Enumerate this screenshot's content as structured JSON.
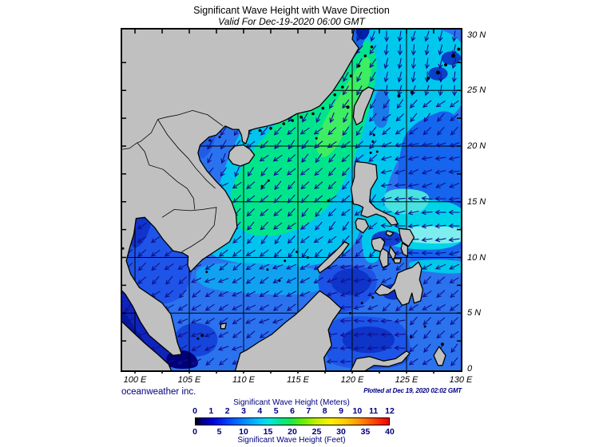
{
  "title": "Significant Wave Height with Wave Direction",
  "subtitle": "Valid For Dec-19-2020 06:00 GMT",
  "credit": "oceanweather inc.",
  "plotted": "Plotted at Dec 19, 2020 02:02 GMT",
  "axes": {
    "lat": [
      {
        "label": "30 N",
        "value": 30
      },
      {
        "label": "25 N",
        "value": 25
      },
      {
        "label": "20 N",
        "value": 20
      },
      {
        "label": "15 N",
        "value": 15
      },
      {
        "label": "10 N",
        "value": 10
      },
      {
        "label": "5 N",
        "value": 5
      },
      {
        "label": "0",
        "value": 0
      }
    ],
    "lon": [
      {
        "label": "100 E",
        "value": 100
      },
      {
        "label": "105 E",
        "value": 105
      },
      {
        "label": "110 E",
        "value": 110
      },
      {
        "label": "115 E",
        "value": 115
      },
      {
        "label": "120 E",
        "value": 120
      },
      {
        "label": "125 E",
        "value": 125
      },
      {
        "label": "130 E",
        "value": 130
      }
    ]
  },
  "legend": {
    "meters_title": "Significant Wave Height (Meters)",
    "feet_title": "Significant Wave Height (Feet)",
    "meters_ticks": [
      0,
      1,
      2,
      3,
      4,
      5,
      6,
      7,
      8,
      9,
      10,
      11,
      12
    ],
    "feet_ticks": [
      0,
      5,
      10,
      15,
      20,
      25,
      30,
      35,
      40
    ],
    "gradient": [
      [
        "0%",
        "#000000"
      ],
      [
        "3%",
        "#000080"
      ],
      [
        "9%",
        "#0000e0"
      ],
      [
        "17%",
        "#0048ff"
      ],
      [
        "25%",
        "#0088ff"
      ],
      [
        "33%",
        "#00c8ff"
      ],
      [
        "38%",
        "#00e8e0"
      ],
      [
        "44%",
        "#00e890"
      ],
      [
        "50%",
        "#20e840"
      ],
      [
        "56%",
        "#70ee00"
      ],
      [
        "63%",
        "#c8f000"
      ],
      [
        "70%",
        "#fff000"
      ],
      [
        "78%",
        "#ffc800"
      ],
      [
        "85%",
        "#ff9000"
      ],
      [
        "92%",
        "#ff4800"
      ],
      [
        "100%",
        "#ee0000"
      ]
    ]
  },
  "map": {
    "colors": {
      "land": "#c0c0c0",
      "coast": "#000000",
      "sea_base": "#2b72ee",
      "grid": "#000000",
      "arrow": "#10108e",
      "border": "#000000"
    },
    "wave_zones": [
      {
        "name": "scs-cyan",
        "color": "#00c4ee",
        "pts": [
          [
            106.5,
            11
          ],
          [
            107.2,
            14.5
          ],
          [
            108.2,
            18
          ],
          [
            109.3,
            20.5
          ],
          [
            110.3,
            22.3
          ],
          [
            112,
            23.8
          ],
          [
            114,
            25.5
          ],
          [
            116,
            27.2
          ],
          [
            118,
            28.8
          ],
          [
            119.3,
            30.2
          ],
          [
            119.8,
            30.7
          ],
          [
            123.5,
            30.7
          ],
          [
            123.2,
            27
          ],
          [
            122.5,
            23
          ],
          [
            121.8,
            19
          ],
          [
            121.3,
            15
          ],
          [
            120.7,
            12
          ],
          [
            119.5,
            10.3
          ],
          [
            117,
            9.3
          ],
          [
            113,
            9.0
          ],
          [
            109.5,
            9.5
          ],
          [
            107.3,
            10
          ]
        ]
      },
      {
        "name": "pacific-cyan",
        "color": "#00c8ec",
        "pts": [
          [
            121,
            30.7
          ],
          [
            130.7,
            30.7
          ],
          [
            130.7,
            23.5
          ],
          [
            127,
            21.5
          ],
          [
            124.5,
            19.5
          ],
          [
            123,
            16
          ],
          [
            122.5,
            12
          ],
          [
            122.6,
            9.5
          ],
          [
            121,
            9.5
          ],
          [
            120.8,
            13
          ],
          [
            121.5,
            17
          ],
          [
            122.3,
            22
          ],
          [
            122.8,
            26
          ],
          [
            122.5,
            29
          ]
        ]
      },
      {
        "name": "pacific-blue",
        "color": "#1565ee",
        "pts": [
          [
            125,
            22
          ],
          [
            130.7,
            24
          ],
          [
            130.7,
            9
          ],
          [
            124.8,
            9
          ],
          [
            124.2,
            15
          ],
          [
            124.2,
            18.5
          ]
        ]
      },
      {
        "name": "pacific-band-cyan",
        "color": "#00d4e8",
        "pts": [
          [
            122.6,
            15.2
          ],
          [
            130.7,
            15.2
          ],
          [
            130.7,
            10.6
          ],
          [
            122.8,
            10.8
          ],
          [
            122.4,
            13
          ]
        ]
      },
      {
        "name": "pacific-band-pale",
        "color": "#7dedee",
        "pts": [
          [
            124,
            12.8
          ],
          [
            130.7,
            12.8
          ],
          [
            130.7,
            11.2
          ],
          [
            124.5,
            11.3
          ]
        ]
      },
      {
        "name": "pacific-light",
        "color": "#49e2e0",
        "pts": [
          [
            122.8,
            16.3
          ],
          [
            127.5,
            16
          ],
          [
            126.5,
            13.8
          ],
          [
            123,
            14
          ]
        ]
      },
      {
        "name": "green-core",
        "color": "#00e58c",
        "pts": [
          [
            109.5,
            12.5
          ],
          [
            108.5,
            15.5
          ],
          [
            110,
            18.5
          ],
          [
            112,
            21
          ],
          [
            114.5,
            23.5
          ],
          [
            117,
            25.8
          ],
          [
            119,
            27.8
          ],
          [
            120.5,
            29.3
          ],
          [
            121.7,
            29.6
          ],
          [
            122.4,
            27.5
          ],
          [
            121.9,
            24.5
          ],
          [
            120.9,
            21
          ],
          [
            119.7,
            17.5
          ],
          [
            117.5,
            14
          ],
          [
            114.5,
            12.2
          ],
          [
            111.5,
            11.8
          ]
        ]
      },
      {
        "name": "green-bright",
        "color": "#3ded62",
        "pts": [
          [
            116.5,
            20
          ],
          [
            117.5,
            22.5
          ],
          [
            119,
            24.8
          ],
          [
            120.3,
            26.8
          ],
          [
            121.3,
            28.3
          ],
          [
            121.9,
            27.2
          ],
          [
            121.3,
            24.8
          ],
          [
            119.8,
            22
          ],
          [
            118.3,
            19.5
          ],
          [
            117.2,
            18.8
          ]
        ]
      },
      {
        "name": "south-band",
        "color": "#10a2f0",
        "pts": [
          [
            105.8,
            9.8
          ],
          [
            119,
            9.0
          ],
          [
            117,
            6.5
          ],
          [
            109,
            6.8
          ],
          [
            105.5,
            7.5
          ]
        ]
      },
      {
        "name": "tonkin-blue",
        "color": "#1e5ce8",
        "pts": [
          [
            105.6,
            21.6
          ],
          [
            107.6,
            21.6
          ],
          [
            107.2,
            19.8
          ],
          [
            105.9,
            18.4
          ]
        ]
      },
      {
        "name": "tonkin-dark",
        "color": "#0c2cc0",
        "pts": [
          [
            105.7,
            21.4
          ],
          [
            106.8,
            21.4
          ],
          [
            106.1,
            20.2
          ]
        ]
      },
      {
        "name": "china-coast-blue",
        "color": "#1565e8",
        "pts": [
          [
            119.8,
            30.7
          ],
          [
            121.5,
            30.7
          ],
          [
            121.0,
            29.0
          ],
          [
            119.9,
            27.6
          ],
          [
            119.2,
            26.4
          ],
          [
            118.6,
            25.6
          ],
          [
            118.0,
            25.2
          ],
          [
            118.6,
            26.8
          ],
          [
            119.3,
            28.6
          ]
        ]
      },
      {
        "name": "hangzhou-dark",
        "color": "#0020a8",
        "pts": [
          [
            120.3,
            30.7
          ],
          [
            121.8,
            30.7
          ],
          [
            121.2,
            29.4
          ],
          [
            120.4,
            29.8
          ]
        ]
      },
      {
        "name": "taiwan-east-blue",
        "color": "#1a7ae8",
        "pts": [
          [
            122.1,
            25.2
          ],
          [
            123.5,
            25
          ],
          [
            123.3,
            21.5
          ],
          [
            121.8,
            21.8
          ]
        ]
      },
      {
        "name": "gulf-thailand-blue",
        "color": "#1e55e8",
        "pts": [
          [
            99,
            13.8
          ],
          [
            105.3,
            13.8
          ],
          [
            105.3,
            5.8
          ],
          [
            99,
            5.8
          ]
        ]
      },
      {
        "name": "gulf-thailand-dark",
        "color": "#0f35cc",
        "pts": [
          [
            99.3,
            13.7
          ],
          [
            101.8,
            13.7
          ],
          [
            100.8,
            11.2
          ],
          [
            99.6,
            10.6
          ]
        ]
      },
      {
        "name": "natuna-dark",
        "color": "#1545da",
        "ell": [
          105.6,
          2.6,
          2.0,
          1.5
        ]
      },
      {
        "name": "andaman-dark",
        "color": "#0e24bc",
        "pts": [
          [
            98.7,
            8.2
          ],
          [
            99.6,
            6.6
          ],
          [
            100.9,
            4.6
          ],
          [
            102.2,
            2.6
          ],
          [
            103.6,
            0.8
          ],
          [
            103.8,
            0
          ],
          [
            98.7,
            0
          ]
        ]
      },
      {
        "name": "malacca-navy",
        "color": "#0618a0",
        "pts": [
          [
            98.7,
            5.8
          ],
          [
            99.6,
            4.2
          ],
          [
            100.9,
            2.4
          ],
          [
            101.9,
            1.0
          ],
          [
            102.2,
            0
          ],
          [
            98.7,
            0
          ]
        ]
      },
      {
        "name": "singapore-dark",
        "color": "#000078",
        "pts": [
          [
            102.8,
            1.4
          ],
          [
            104.6,
            1.8
          ],
          [
            105.8,
            1.0
          ],
          [
            105.8,
            0
          ],
          [
            103.0,
            0
          ]
        ]
      },
      {
        "name": "sulu-blue",
        "color": "#1d52e6",
        "pts": [
          [
            117,
            9.3
          ],
          [
            121.8,
            9.3
          ],
          [
            122.5,
            7.5
          ],
          [
            121,
            5.5
          ],
          [
            118,
            4.8
          ],
          [
            116.8,
            7
          ]
        ]
      },
      {
        "name": "sulu-dark",
        "color": "#0e34c8",
        "ell": [
          119.9,
          7.8,
          1.8,
          1.2
        ]
      },
      {
        "name": "celebes-blue",
        "color": "#1d55e8",
        "pts": [
          [
            117.8,
            4.8
          ],
          [
            124.5,
            4.6
          ],
          [
            125.5,
            2
          ],
          [
            125,
            0
          ],
          [
            118,
            0
          ],
          [
            117.5,
            2
          ]
        ]
      },
      {
        "name": "celebes-dark",
        "color": "#0e34c8",
        "ell": [
          121.5,
          2.6,
          2.4,
          1.2
        ]
      },
      {
        "name": "moro-dark",
        "color": "#0c30c6",
        "ell": [
          123.8,
          6.9,
          1.1,
          0.7
        ]
      },
      {
        "name": "visayan-dark",
        "color": "#1240d0",
        "ell": [
          123.2,
          11.7,
          1.4,
          0.7
        ]
      },
      {
        "name": "mindanao-cyan-streak",
        "color": "#00c8e8",
        "pts": [
          [
            125,
            9.8
          ],
          [
            130.7,
            9.8
          ],
          [
            130.7,
            8.4
          ],
          [
            125.5,
            8.8
          ]
        ]
      },
      {
        "name": "ryukyu-dark-1",
        "color": "#0840cc",
        "ell": [
          127.9,
          26.5,
          0.9,
          0.6
        ]
      },
      {
        "name": "ryukyu-dark-2",
        "color": "#0840cc",
        "ell": [
          129.1,
          27.9,
          0.9,
          0.6
        ]
      }
    ],
    "arrow_zones": [
      {
        "lon": [
          98.8,
          105.6
        ],
        "lat": [
          4.5,
          14.2
        ],
        "dir": 230
      },
      {
        "lon": [
          98.8,
          106.0
        ],
        "lat": [
          0,
          4.5
        ],
        "dir": 245
      },
      {
        "lon": [
          105.5,
          110.5
        ],
        "lat": [
          16.5,
          22
        ],
        "dir": 210
      },
      {
        "lon": [
          98.8,
          117.5
        ],
        "lat": [
          0,
          9.5
        ],
        "dir": 240
      },
      {
        "lon": [
          117.5,
          122.5
        ],
        "lat": [
          4.8,
          9.5
        ],
        "dir": 255
      },
      {
        "lon": [
          117.5,
          125.0
        ],
        "lat": [
          0,
          4.8
        ],
        "dir": 265
      },
      {
        "lon": [
          125.0,
          130.7
        ],
        "lat": [
          0,
          4.8
        ],
        "dir": 225
      },
      {
        "lon": [
          122.5,
          130.7
        ],
        "lat": [
          4.8,
          9.5
        ],
        "dir": 235
      },
      {
        "lon": [
          122.2,
          130.7
        ],
        "lat": [
          9.5,
          16
        ],
        "dir": 265
      },
      {
        "lon": [
          122.2,
          130.7
        ],
        "lat": [
          16,
          20.5
        ],
        "dir": 255
      },
      {
        "lon": [
          122.2,
          130.7
        ],
        "lat": [
          20.5,
          24.5
        ],
        "dir": 225
      },
      {
        "lon": [
          122.2,
          130.7
        ],
        "lat": [
          24.5,
          30.7
        ],
        "dir": 190
      },
      {
        "lon": [
          110.0,
          122.2
        ],
        "lat": [
          21.5,
          30.7
        ],
        "dir": 210
      },
      {
        "lon": [
          98.8,
          110.0
        ],
        "lat": [
          21.5,
          30.7
        ],
        "dir": 205
      },
      {
        "lon": [
          109.0,
          122.2
        ],
        "lat": [
          9.5,
          21.5
        ],
        "dir": 225
      }
    ],
    "arrow_default_dir": 235
  }
}
